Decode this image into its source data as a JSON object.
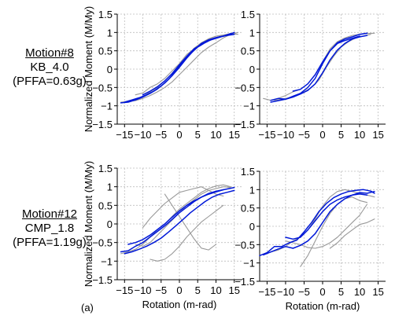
{
  "row_labels": [
    {
      "motion": "Motion#8",
      "record": "KB_4.0",
      "pffa": "(PFFA=0.63g)"
    },
    {
      "motion": "Motion#12",
      "record": "CMP_1.8",
      "pffa": "(PFFA=1.19g)"
    }
  ],
  "panel_tag": "(a)",
  "ylabel": "Normalized Moment (M/My)",
  "xlabel": "Rotation (m-rad)",
  "colors": {
    "test": "#999999",
    "model": "#0018d8",
    "grid": "#bdbdbd"
  },
  "chart_data": [
    {
      "type": "line",
      "xlabel": "",
      "ylabel": "Normalized Moment (M/My)",
      "xlim": [
        -17,
        17
      ],
      "ylim": [
        -1.5,
        1.5
      ],
      "xticks": [
        -15,
        -10,
        -5,
        0,
        5,
        10,
        15
      ],
      "yticks": [
        -1.5,
        -1,
        -0.5,
        0,
        0.5,
        1,
        1.5
      ],
      "grid": true,
      "series": [
        {
          "color": "gray",
          "x": [
            -16,
            -14,
            -12,
            -10,
            -8,
            -6,
            -4,
            -2,
            0,
            2,
            4,
            6,
            8,
            10,
            12,
            14,
            16
          ],
          "y": [
            -0.9,
            -0.88,
            -0.82,
            -0.75,
            -0.62,
            -0.5,
            -0.32,
            -0.12,
            0.1,
            0.35,
            0.57,
            0.72,
            0.83,
            0.9,
            0.93,
            0.97,
            0.95
          ]
        },
        {
          "color": "gray",
          "x": [
            16,
            14,
            12,
            10,
            8,
            6,
            4,
            2,
            0,
            -2,
            -4,
            -6,
            -8,
            -10,
            -12,
            -14,
            -16
          ],
          "y": [
            1.0,
            0.95,
            0.85,
            0.72,
            0.6,
            0.45,
            0.25,
            0.05,
            -0.15,
            -0.35,
            -0.5,
            -0.62,
            -0.72,
            -0.8,
            -0.86,
            -0.88,
            -0.92
          ]
        },
        {
          "color": "gray",
          "x": [
            -12,
            -10,
            -8,
            -6,
            -4,
            -2,
            0,
            2,
            4,
            6,
            8,
            10,
            12
          ],
          "y": [
            -0.7,
            -0.65,
            -0.5,
            -0.4,
            -0.25,
            -0.05,
            0.15,
            0.4,
            0.55,
            0.7,
            0.82,
            0.9,
            0.92
          ]
        },
        {
          "color": "blue",
          "x": [
            -16,
            -14,
            -12,
            -10,
            -8,
            -6,
            -4,
            -2,
            0,
            2,
            4,
            6,
            8,
            10,
            12,
            14,
            15
          ],
          "y": [
            -0.92,
            -0.9,
            -0.84,
            -0.76,
            -0.66,
            -0.54,
            -0.38,
            -0.18,
            0.05,
            0.3,
            0.52,
            0.7,
            0.8,
            0.86,
            0.9,
            0.96,
            1.0
          ]
        },
        {
          "color": "blue",
          "x": [
            15,
            13,
            11,
            9,
            7,
            5,
            3,
            1,
            -1,
            -3,
            -5,
            -7,
            -9,
            -11,
            -13,
            -15
          ],
          "y": [
            0.95,
            0.92,
            0.88,
            0.82,
            0.72,
            0.6,
            0.42,
            0.2,
            -0.05,
            -0.28,
            -0.46,
            -0.6,
            -0.7,
            -0.78,
            -0.84,
            -0.9
          ]
        },
        {
          "color": "blue",
          "x": [
            -10,
            -8,
            -6,
            -4,
            -2,
            0,
            2,
            4,
            6,
            8,
            10,
            12,
            14
          ],
          "y": [
            -0.7,
            -0.6,
            -0.48,
            -0.32,
            -0.12,
            0.12,
            0.35,
            0.55,
            0.68,
            0.78,
            0.84,
            0.9,
            0.97
          ]
        }
      ]
    },
    {
      "type": "line",
      "xlabel": "",
      "ylabel": "",
      "xlim": [
        -17,
        17
      ],
      "ylim": [
        -1.5,
        1.5
      ],
      "xticks": [
        -15,
        -10,
        -5,
        0,
        5,
        10,
        15
      ],
      "yticks": [
        -1.5,
        -1,
        -0.5,
        0,
        0.5,
        1,
        1.5
      ],
      "grid": true,
      "series": [
        {
          "color": "gray",
          "x": [
            -16,
            -14,
            -12,
            -10,
            -8,
            -6,
            -4,
            -2,
            0,
            2,
            4,
            6,
            8,
            10,
            12,
            14
          ],
          "y": [
            -0.8,
            -0.85,
            -0.8,
            -0.72,
            -0.62,
            -0.55,
            -0.4,
            -0.15,
            0.2,
            0.55,
            0.75,
            0.85,
            0.92,
            0.95,
            0.97,
            0.98
          ]
        },
        {
          "color": "gray",
          "x": [
            13,
            11,
            9,
            7,
            5,
            3,
            1,
            -1,
            -3,
            -5,
            -7,
            -9,
            -11,
            -13
          ],
          "y": [
            0.95,
            0.9,
            0.85,
            0.75,
            0.6,
            0.35,
            0.05,
            -0.3,
            -0.5,
            -0.62,
            -0.72,
            -0.78,
            -0.82,
            -0.85
          ]
        },
        {
          "color": "blue",
          "x": [
            -14,
            -12,
            -10,
            -8,
            -6,
            -4,
            -2,
            0,
            2,
            4,
            6,
            8,
            10,
            12
          ],
          "y": [
            -0.85,
            -0.8,
            -0.82,
            -0.74,
            -0.66,
            -0.5,
            -0.25,
            0.15,
            0.5,
            0.72,
            0.82,
            0.88,
            0.95,
            0.98
          ]
        },
        {
          "color": "blue",
          "x": [
            12,
            10,
            8,
            6,
            4,
            2,
            0,
            -2,
            -4,
            -6,
            -8,
            -10,
            -12,
            -14
          ],
          "y": [
            0.92,
            0.88,
            0.82,
            0.7,
            0.52,
            0.25,
            -0.1,
            -0.4,
            -0.58,
            -0.68,
            -0.76,
            -0.82,
            -0.86,
            -0.9
          ]
        },
        {
          "color": "blue",
          "x": [
            -8,
            -6,
            -4,
            -2,
            0,
            2,
            4,
            6,
            8,
            10
          ],
          "y": [
            -0.6,
            -0.55,
            -0.4,
            -0.15,
            0.2,
            0.5,
            0.7,
            0.78,
            0.84,
            0.9
          ]
        }
      ]
    },
    {
      "type": "line",
      "xlabel": "Rotation (m-rad)",
      "ylabel": "Normalized Moment (M/My)",
      "xlim": [
        -17,
        17
      ],
      "ylim": [
        -1.5,
        1.5
      ],
      "xticks": [
        -15,
        -10,
        -5,
        0,
        5,
        10,
        15
      ],
      "yticks": [
        -1.5,
        -1,
        -0.5,
        0,
        0.5,
        1,
        1.5
      ],
      "grid": true,
      "series": [
        {
          "color": "gray",
          "x": [
            -16,
            -14,
            -12,
            -10,
            -8,
            -6,
            -4,
            -2,
            0,
            2,
            4,
            6,
            8,
            10,
            12,
            14
          ],
          "y": [
            -0.8,
            -0.75,
            -0.68,
            -0.55,
            -0.35,
            -0.15,
            0.0,
            0.2,
            0.4,
            0.55,
            0.7,
            0.85,
            0.95,
            1.02,
            1.05,
            1.0
          ]
        },
        {
          "color": "gray",
          "x": [
            -10,
            -8,
            -6,
            -4,
            -2,
            0,
            2,
            4,
            6,
            8,
            10,
            12
          ],
          "y": [
            -0.1,
            0.15,
            0.35,
            0.55,
            0.7,
            0.85,
            0.9,
            0.95,
            1.0,
            0.9,
            0.8,
            0.75
          ]
        },
        {
          "color": "gray",
          "x": [
            12,
            10,
            8,
            6,
            4,
            2,
            0,
            -2,
            -4,
            -6,
            -8
          ],
          "y": [
            0.5,
            0.35,
            0.2,
            0.05,
            -0.15,
            -0.35,
            -0.6,
            -0.8,
            -0.95,
            -1.0,
            -0.95
          ]
        },
        {
          "color": "gray",
          "x": [
            -4,
            -2,
            0,
            2,
            4,
            6,
            8,
            10
          ],
          "y": [
            0.8,
            0.5,
            0.2,
            -0.1,
            -0.4,
            -0.65,
            -0.7,
            -0.55
          ]
        },
        {
          "color": "gray",
          "x": [
            -12,
            -10,
            -8,
            -6,
            -4,
            -2,
            0,
            2,
            4,
            6,
            8,
            10,
            12,
            14
          ],
          "y": [
            -0.55,
            -0.6,
            -0.5,
            -0.3,
            -0.1,
            0.1,
            0.3,
            0.5,
            0.65,
            0.8,
            0.9,
            0.95,
            1.0,
            0.98
          ]
        },
        {
          "color": "blue",
          "x": [
            -16,
            -14,
            -12,
            -10,
            -8,
            -6,
            -4,
            -2,
            0,
            2,
            4,
            6,
            8,
            10,
            12,
            14,
            15
          ],
          "y": [
            -0.75,
            -0.72,
            -0.6,
            -0.5,
            -0.35,
            -0.2,
            -0.05,
            0.12,
            0.3,
            0.45,
            0.6,
            0.72,
            0.82,
            0.88,
            0.92,
            0.96,
            0.98
          ]
        },
        {
          "color": "blue",
          "x": [
            15,
            13,
            11,
            9,
            7,
            5,
            3,
            1,
            -1,
            -3,
            -5,
            -7,
            -9,
            -11,
            -13,
            -15
          ],
          "y": [
            0.9,
            0.85,
            0.8,
            0.72,
            0.6,
            0.45,
            0.3,
            0.12,
            -0.05,
            -0.22,
            -0.38,
            -0.5,
            -0.6,
            -0.68,
            -0.75,
            -0.8
          ]
        },
        {
          "color": "blue",
          "x": [
            -14,
            -12,
            -10,
            -8,
            -6,
            -4,
            -2,
            0,
            2,
            4,
            6,
            8,
            10,
            12
          ],
          "y": [
            -0.55,
            -0.5,
            -0.42,
            -0.3,
            -0.15,
            0.0,
            0.18,
            0.35,
            0.5,
            0.62,
            0.72,
            0.8,
            0.86,
            0.92
          ]
        }
      ]
    },
    {
      "type": "line",
      "xlabel": "Rotation (m-rad)",
      "ylabel": "",
      "xlim": [
        -17,
        17
      ],
      "ylim": [
        -1.5,
        1.5
      ],
      "xticks": [
        -15,
        -10,
        -5,
        0,
        5,
        10,
        15
      ],
      "yticks": [
        -1.5,
        -1,
        -0.5,
        0,
        0.5,
        1,
        1.5
      ],
      "grid": true,
      "series": [
        {
          "color": "gray",
          "x": [
            -14,
            -12,
            -10,
            -8,
            -6,
            -4,
            -2,
            0,
            2,
            4,
            6,
            8,
            10,
            12,
            14
          ],
          "y": [
            -0.7,
            -0.65,
            -0.55,
            -0.4,
            -0.3,
            -0.1,
            0.2,
            0.55,
            0.8,
            0.95,
            1.0,
            0.95,
            0.9,
            0.85,
            0.8
          ]
        },
        {
          "color": "gray",
          "x": [
            -6,
            -4,
            -2,
            0,
            2,
            4,
            6,
            8,
            10,
            12
          ],
          "y": [
            -1.1,
            -0.8,
            -0.4,
            0.0,
            0.35,
            0.6,
            0.75,
            0.8,
            0.7,
            0.65
          ]
        },
        {
          "color": "gray",
          "x": [
            12,
            10,
            8,
            6,
            4,
            2,
            0,
            -2,
            -4,
            -6,
            -8,
            -10
          ],
          "y": [
            0.6,
            0.3,
            0.1,
            -0.1,
            -0.3,
            -0.45,
            -0.55,
            -0.6,
            -0.58,
            -0.5,
            -0.45,
            -0.4
          ]
        },
        {
          "color": "gray",
          "x": [
            2,
            4,
            6,
            8,
            10,
            12,
            14
          ],
          "y": [
            -0.6,
            -0.45,
            -0.25,
            -0.1,
            0.05,
            0.1,
            0.2
          ]
        },
        {
          "color": "blue",
          "x": [
            -17,
            -15,
            -13,
            -11,
            -9,
            -7,
            -5,
            -3,
            -1,
            1,
            3,
            5,
            7,
            9,
            11,
            13,
            14
          ],
          "y": [
            -0.8,
            -0.72,
            -0.55,
            -0.55,
            -0.45,
            -0.38,
            -0.15,
            0.1,
            0.4,
            0.62,
            0.78,
            0.88,
            0.95,
            0.98,
            1.0,
            0.96,
            0.9
          ]
        },
        {
          "color": "blue",
          "x": [
            14,
            12,
            10,
            8,
            6,
            4,
            2,
            0,
            -2,
            -4,
            -6,
            -8,
            -10,
            -12,
            -14,
            -16
          ],
          "y": [
            0.95,
            0.9,
            0.92,
            0.85,
            0.75,
            0.6,
            0.4,
            0.1,
            -0.2,
            -0.4,
            -0.52,
            -0.6,
            -0.55,
            -0.62,
            -0.7,
            -0.78
          ]
        },
        {
          "color": "blue",
          "x": [
            -10,
            -8,
            -6,
            -4,
            -2,
            0,
            2,
            4,
            6,
            8,
            10,
            12
          ],
          "y": [
            -0.3,
            -0.35,
            -0.3,
            -0.1,
            0.15,
            0.4,
            0.6,
            0.72,
            0.8,
            0.85,
            0.88,
            0.85
          ]
        }
      ]
    }
  ]
}
